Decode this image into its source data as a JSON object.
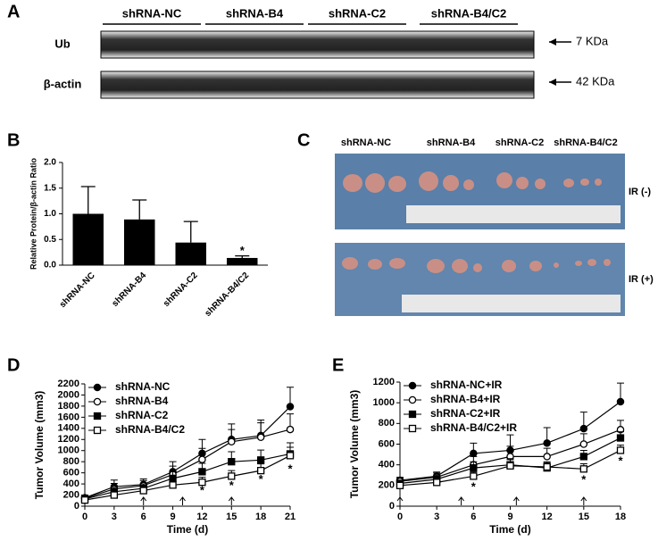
{
  "panel_labels": [
    "A",
    "B",
    "C",
    "D",
    "E"
  ],
  "blot": {
    "groups": [
      "shRNA-NC",
      "shRNA-B4",
      "shRNA-C2",
      "shRNA-B4/C2"
    ],
    "rows": [
      {
        "label": "Ub",
        "marker": "7 KDa"
      },
      {
        "label": "β-actin",
        "marker": "42 KDa"
      }
    ]
  },
  "photo": {
    "groups": [
      "shRNA-NC",
      "shRNA-B4",
      "shRNA-C2",
      "shRNA-B4/C2"
    ],
    "rows": [
      "IR (-)",
      "IR (+)"
    ]
  },
  "chart_data": [
    {
      "type": "bar",
      "ylabel": "Relative Protein/β-actin Ratio",
      "categories": [
        "shRNA-NC",
        "shRNA-B4",
        "shRNA-C2",
        "shRNA-B4/C2"
      ],
      "values": [
        1.0,
        0.89,
        0.44,
        0.14
      ],
      "errors": [
        0.53,
        0.38,
        0.41,
        0.04
      ],
      "color": "#000000",
      "ylim": [
        0,
        2.0
      ],
      "yticks": [
        {
          "value": 0,
          "label": "0.0"
        },
        {
          "value": 0.5,
          "label": "0.5"
        },
        {
          "value": 1,
          "label": "1.0"
        },
        {
          "value": 1.5,
          "label": "1.5"
        },
        {
          "value": 2,
          "label": "2.0"
        }
      ],
      "annotations": [
        {
          "text": "*",
          "x": "shRNA-B4/C2",
          "y": 0.27
        }
      ]
    },
    {
      "type": "line",
      "xlabel": "Time (d)",
      "ylabel": "Tumor Volume (mm3)",
      "x": [
        0,
        3,
        6,
        9,
        12,
        15,
        18,
        21
      ],
      "xlim": [
        0,
        21
      ],
      "xticks": [
        0,
        3,
        6,
        9,
        12,
        15,
        18,
        21
      ],
      "ylim": [
        0,
        2200
      ],
      "yticks": [
        0,
        200,
        400,
        600,
        800,
        1000,
        1200,
        1400,
        1600,
        1800,
        2000,
        2200
      ],
      "legend": "upper left",
      "series": [
        {
          "name": "shRNA-NC",
          "color": "#000000",
          "marker": "filled-circle",
          "values": [
            150,
            350,
            390,
            620,
            950,
            1200,
            1270,
            1790
          ],
          "errors": [
            50,
            120,
            100,
            180,
            250,
            280,
            280,
            350
          ]
        },
        {
          "name": "shRNA-B4",
          "color": "#000000",
          "marker": "open-circle",
          "values": [
            140,
            310,
            370,
            570,
            840,
            1160,
            1240,
            1380
          ],
          "errors": [
            40,
            100,
            90,
            150,
            200,
            220,
            260,
            280
          ]
        },
        {
          "name": "shRNA-C2",
          "color": "#000000",
          "marker": "filled-square",
          "values": [
            130,
            260,
            320,
            500,
            620,
            800,
            830,
            940
          ],
          "errors": [
            40,
            80,
            80,
            120,
            150,
            180,
            180,
            200
          ]
        },
        {
          "name": "shRNA-B4/C2",
          "color": "#000000",
          "marker": "open-square",
          "values": [
            110,
            200,
            280,
            380,
            430,
            540,
            640,
            910
          ],
          "errors": [
            30,
            60,
            60,
            80,
            90,
            100,
            120,
            150
          ]
        }
      ],
      "arrows_x": [
        0,
        6,
        10,
        15
      ],
      "annotations": [
        {
          "text": "*",
          "x": 12,
          "y": 270
        },
        {
          "text": "*",
          "x": 15,
          "y": 360
        },
        {
          "text": "*",
          "x": 18,
          "y": 470
        },
        {
          "text": "*",
          "x": 21,
          "y": 660
        }
      ]
    },
    {
      "type": "line",
      "xlabel": "Time (d)",
      "ylabel": "Tumor Volume (mm3)",
      "x": [
        0,
        3,
        6,
        9,
        12,
        15,
        18
      ],
      "xlim": [
        0,
        18
      ],
      "xticks": [
        0,
        3,
        6,
        9,
        12,
        15,
        18
      ],
      "ylim": [
        0,
        1200
      ],
      "yticks": [
        0,
        200,
        400,
        600,
        800,
        1000,
        1200
      ],
      "legend": "upper left",
      "series": [
        {
          "name": "shRNA-NC+IR",
          "color": "#000000",
          "marker": "filled-circle",
          "values": [
            250,
            290,
            510,
            540,
            610,
            750,
            1010
          ],
          "errors": [
            30,
            40,
            100,
            150,
            150,
            160,
            180
          ]
        },
        {
          "name": "shRNA-B4+IR",
          "color": "#000000",
          "marker": "open-circle",
          "values": [
            240,
            280,
            400,
            480,
            480,
            600,
            740
          ],
          "errors": [
            30,
            40,
            80,
            100,
            80,
            100,
            90
          ]
        },
        {
          "name": "shRNA-C2+IR",
          "color": "#000000",
          "marker": "filled-square",
          "values": [
            220,
            260,
            370,
            400,
            370,
            480,
            660
          ],
          "errors": [
            30,
            40,
            60,
            60,
            50,
            60,
            60
          ]
        },
        {
          "name": "shRNA-B4/C2+IR",
          "color": "#000000",
          "marker": "open-square",
          "values": [
            200,
            230,
            290,
            390,
            380,
            360,
            540
          ],
          "errors": [
            20,
            30,
            40,
            60,
            50,
            50,
            50
          ]
        }
      ],
      "arrows_x": [
        0,
        5,
        9.5,
        15
      ],
      "annotations": [
        {
          "text": "*",
          "x": 6,
          "y": 180
        },
        {
          "text": "*",
          "x": 15,
          "y": 250
        },
        {
          "text": "*",
          "x": 18,
          "y": 430
        }
      ]
    }
  ]
}
